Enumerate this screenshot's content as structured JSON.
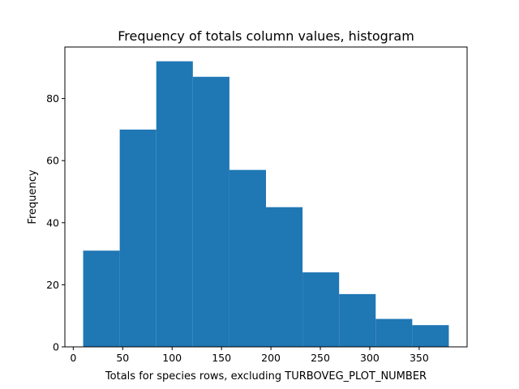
{
  "chart_data": {
    "type": "bar",
    "title": "Frequency of totals column values, histogram",
    "xlabel": "Totals for species rows, excluding TURBOVEG_PLOT_NUMBER",
    "ylabel": "Frequency",
    "bin_edges": [
      10,
      47,
      84,
      121,
      158,
      195,
      232,
      269,
      306,
      343,
      380
    ],
    "values": [
      31,
      70,
      92,
      87,
      57,
      45,
      24,
      17,
      9,
      7
    ],
    "xlim": [
      -8.5,
      398.5
    ],
    "ylim": [
      0,
      96.6
    ],
    "xticks": [
      0,
      50,
      100,
      150,
      200,
      250,
      300,
      350
    ],
    "yticks": [
      0,
      20,
      40,
      60,
      80
    ],
    "bar_color": "#1f77b4",
    "grid": false
  }
}
